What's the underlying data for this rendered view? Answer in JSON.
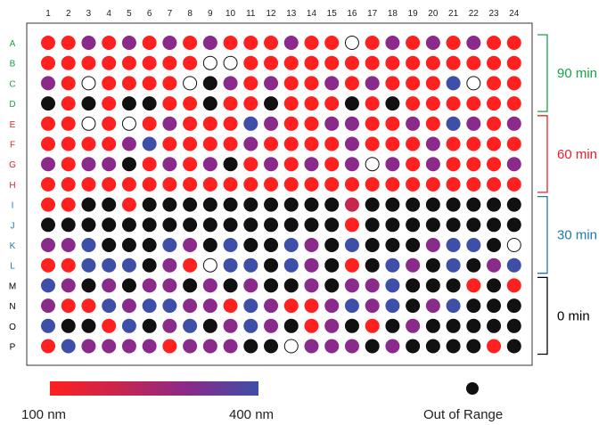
{
  "chart_data": {
    "type": "heatmap",
    "columns": [
      "1",
      "2",
      "3",
      "4",
      "5",
      "6",
      "7",
      "8",
      "9",
      "10",
      "11",
      "12",
      "13",
      "14",
      "15",
      "16",
      "17",
      "18",
      "19",
      "20",
      "21",
      "22",
      "23",
      "24"
    ],
    "rows": [
      "A",
      "B",
      "C",
      "D",
      "E",
      "F",
      "G",
      "H",
      "I",
      "J",
      "K",
      "L",
      "M",
      "N",
      "O",
      "P"
    ],
    "legend": {
      "color_scale_min_label": "100 nm",
      "color_scale_max_label": "400 nm",
      "out_of_range_label": "Out of Range",
      "scale_colors": [
        "#ff2020",
        "#c8254e",
        "#8a2a8a",
        "#3e4fa8"
      ],
      "out_of_range_color": "#111111",
      "empty_well": "open circle"
    },
    "groups": [
      {
        "label": "90 min",
        "rows": [
          "A",
          "B",
          "C",
          "D"
        ],
        "color": "#17a34a"
      },
      {
        "label": "60 min",
        "rows": [
          "E",
          "F",
          "G",
          "H"
        ],
        "color": "#e8202a"
      },
      {
        "label": "30 min",
        "rows": [
          "I",
          "J",
          "K",
          "L"
        ],
        "color": "#1f78b4"
      },
      {
        "label": "0 min",
        "rows": [
          "M",
          "N",
          "O",
          "P"
        ],
        "color": "#000000"
      }
    ],
    "wells_encoding": "R=red/100nm, C=crimson, M=magenta, P=purple, B=blue/400nm, X=out of range, O=empty",
    "wells": [
      "RRPRPRPRPRRRPRRORPRPRPRR",
      "RRRRRRRROORRRRRRRRRRRRRR",
      "PRORRRROXPRPRRPRPRRRBORR",
      "XRXRXXRRXRRXRRRXRXRRRRRR",
      "RRORORPRRRBPRRPPRRPRBPRP",
      "RRRRPBRRRRPRRRRPRRRPRRRR",
      "PRPPXRPRPXRPRPRPOPRPRRRP",
      "RRRRRRRRRRRRRRRRRRRRRRRR",
      "RRXXRXXXXXXXXXXCXXXXXXXX",
      "XXXXXXXXXXXXXXXRXXXXXXXX",
      "PPBXXXBPXBXXBPXBXXXPBBXO",
      "RRBBBXPROBBXBPXRXBPXBXPB",
      "BPXPXPPXPXPXXPXPPBXXXRXR",
      "PRRBPBBPPRBPRRPBPBXPBXXX",
      "BXXRBXPBXPBPXRPXRXPXXXXX",
      "RBPPPPRPPPXXOPPPXPXXXXRX"
    ]
  }
}
